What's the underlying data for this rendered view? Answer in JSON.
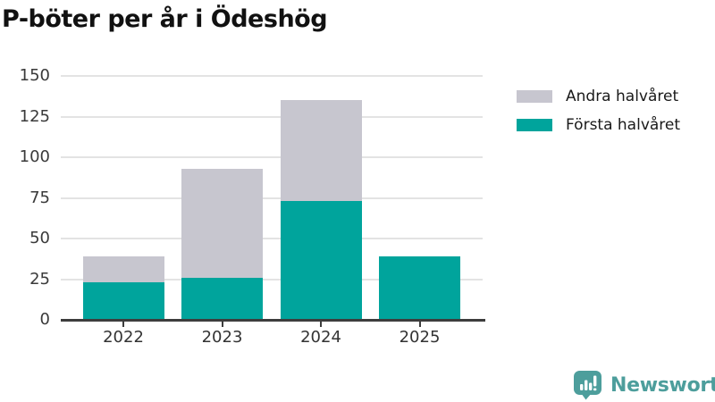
{
  "title": "P-böter per år i Ödeshög",
  "chart_data": {
    "type": "bar",
    "stacked": true,
    "title": "P-böter per år i Ödeshög",
    "categories": [
      "2022",
      "2023",
      "2024",
      "2025"
    ],
    "series": [
      {
        "name": "Första halvåret",
        "color": "#00a49c",
        "values": [
          23,
          26,
          73,
          39
        ]
      },
      {
        "name": "Andra halvåret",
        "color": "#c7c6cf",
        "values": [
          16,
          67,
          62,
          0
        ]
      }
    ],
    "totals": [
      39,
      93,
      135,
      39
    ],
    "xlabel": "",
    "ylabel": "",
    "ylim": [
      0,
      150
    ],
    "yticks": [
      0,
      25,
      50,
      75,
      100,
      125,
      150
    ],
    "grid": true,
    "legend_position": "right-top",
    "legend_order": [
      "Andra halvåret",
      "Första halvåret"
    ]
  },
  "legend": {
    "items": [
      {
        "label": "Andra halvåret",
        "color": "#c7c6cf"
      },
      {
        "label": "Första halvåret",
        "color": "#00a49c"
      }
    ]
  },
  "branding": {
    "logo_text": "Newsworthy",
    "logo_color": "#4d9e9c",
    "icon": "bar-chart-speech-bubble-icon"
  },
  "colors": {
    "background": "#ffffff",
    "title_text": "#111111",
    "axis_text": "#3a3a3a",
    "gridline": "#e3e3e3",
    "axis_line": "#3d3d3d",
    "bar_teal": "#00a49c",
    "bar_gray": "#c7c6cf",
    "logo_teal": "#4d9e9c"
  }
}
